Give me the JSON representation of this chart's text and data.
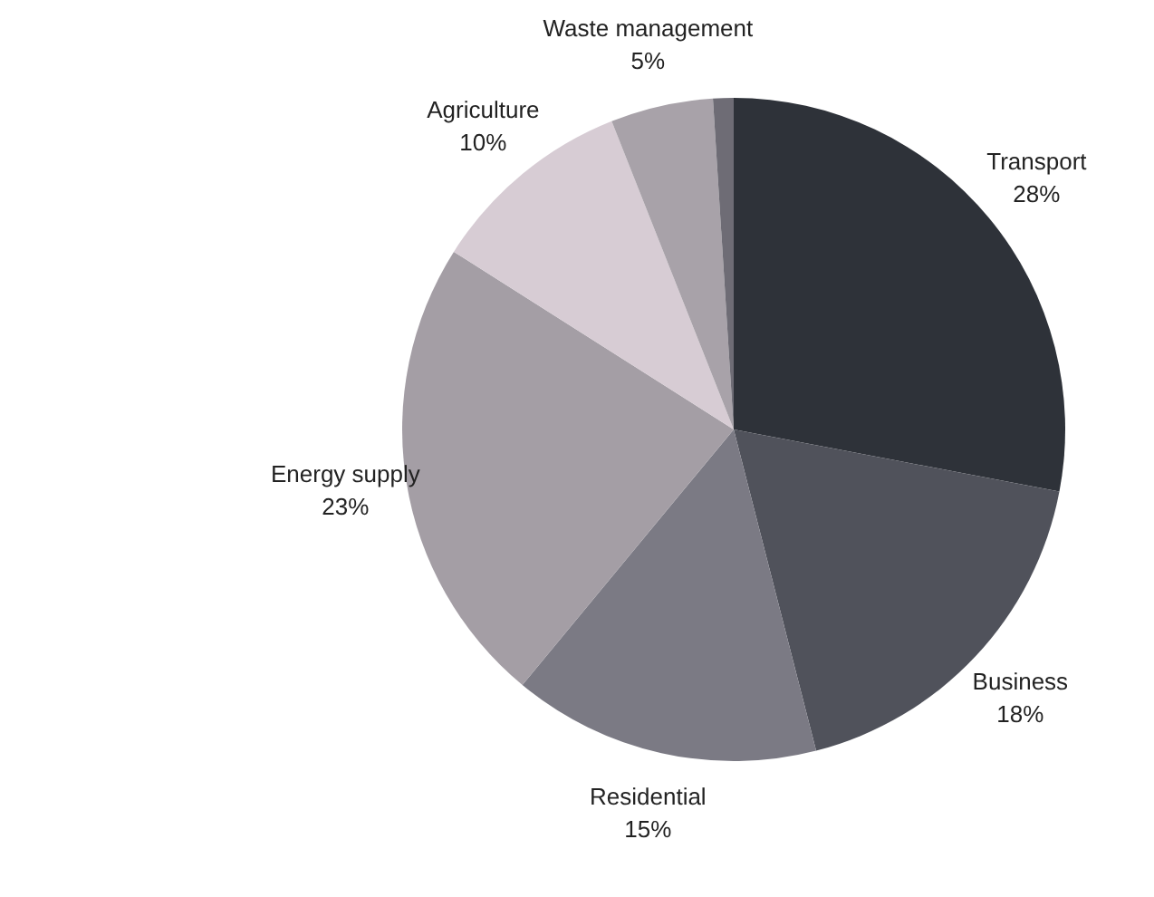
{
  "chart_data": {
    "type": "pie",
    "categories": [
      "Transport",
      "Business",
      "Residential",
      "Energy supply",
      "Agriculture",
      "Waste management",
      null
    ],
    "values": [
      28,
      18,
      15,
      23,
      10,
      5,
      1
    ],
    "value_labels": [
      "28%",
      "18%",
      "15%",
      "23%",
      "10%",
      "5%",
      null
    ],
    "colors": [
      "#2e3239",
      "#50525b",
      "#7b7a84",
      "#a49ea5",
      "#d7ccd4",
      "#a8a2a9",
      "#6e6c75"
    ]
  }
}
